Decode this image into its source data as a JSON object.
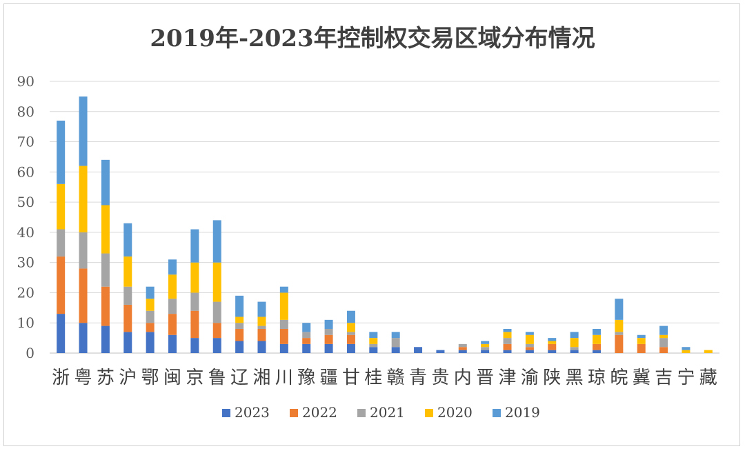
{
  "chart_data": {
    "type": "bar",
    "stacked": true,
    "title": "2019年-2023年控制权交易区域分布情况",
    "ylim": [
      0,
      90
    ],
    "yticks": [
      0,
      10,
      20,
      30,
      40,
      50,
      60,
      70,
      80,
      90
    ],
    "grid": true,
    "legend_position": "bottom",
    "categories": [
      "浙",
      "粤",
      "苏",
      "沪",
      "鄂",
      "闽",
      "京",
      "鲁",
      "辽",
      "湘",
      "川",
      "豫",
      "疆",
      "甘",
      "桂",
      "赣",
      "青",
      "贵",
      "内",
      "晋",
      "津",
      "渝",
      "陕",
      "黑",
      "琼",
      "皖",
      "冀",
      "吉",
      "宁",
      "藏"
    ],
    "series": [
      {
        "name": "2023",
        "color": "#4472c4",
        "values": [
          13,
          10,
          9,
          7,
          7,
          6,
          5,
          5,
          4,
          4,
          3,
          3,
          3,
          3,
          2,
          2,
          2,
          1,
          1,
          1,
          1,
          1,
          1,
          1,
          1,
          0,
          0,
          0,
          0,
          0
        ]
      },
      {
        "name": "2022",
        "color": "#ed7d31",
        "values": [
          19,
          18,
          13,
          9,
          3,
          7,
          9,
          5,
          4,
          4,
          5,
          2,
          3,
          3,
          0,
          0,
          0,
          0,
          1,
          0,
          2,
          1,
          2,
          0,
          2,
          6,
          3,
          2,
          0,
          0
        ]
      },
      {
        "name": "2021",
        "color": "#a5a5a5",
        "values": [
          9,
          12,
          11,
          6,
          4,
          5,
          6,
          7,
          2,
          1,
          3,
          2,
          2,
          1,
          1,
          3,
          0,
          0,
          1,
          1,
          2,
          1,
          0,
          1,
          0,
          1,
          0,
          3,
          0,
          0
        ]
      },
      {
        "name": "2020",
        "color": "#ffc000",
        "values": [
          15,
          22,
          16,
          10,
          4,
          8,
          10,
          13,
          2,
          3,
          9,
          0,
          0,
          3,
          2,
          0,
          0,
          0,
          0,
          1,
          2,
          3,
          1,
          3,
          3,
          4,
          2,
          1,
          1,
          1
        ]
      },
      {
        "name": "2019",
        "color": "#5b9bd5",
        "values": [
          21,
          23,
          15,
          11,
          4,
          5,
          11,
          14,
          7,
          5,
          2,
          3,
          3,
          4,
          2,
          2,
          0,
          0,
          0,
          1,
          1,
          1,
          1,
          2,
          2,
          7,
          1,
          3,
          1,
          0
        ]
      }
    ]
  }
}
